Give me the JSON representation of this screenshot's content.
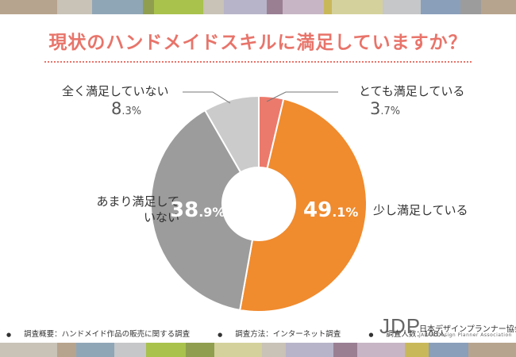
{
  "title": "現状のハンドメイドスキルに満足していますか？",
  "chart_data": {
    "type": "pie",
    "donut": true,
    "unit": "%",
    "slices": [
      {
        "label": "とても満足している",
        "value": 3.7,
        "color": "#ec7a6c"
      },
      {
        "label": "少し満足している",
        "value": 49.1,
        "color": "#f08b2e"
      },
      {
        "label": "あまり満足していない",
        "value": 38.9,
        "color": "#9c9c9c"
      },
      {
        "label": "全く満足していない",
        "value": 8.3,
        "color": "#cbcbcb"
      }
    ]
  },
  "labels": {
    "very_satisfied": {
      "text": "とても満足している",
      "int": "3",
      "dec": ".7%"
    },
    "somewhat_satisfied": {
      "text": "少し満足している",
      "int": "49",
      "dec": ".1%"
    },
    "not_very_line1": "あまり満足して",
    "not_very_line2": "いない",
    "not_very": {
      "int": "38",
      "dec": ".9%"
    },
    "not_at_all": {
      "text": "全く満足していない",
      "int": "8",
      "dec": ".3%"
    }
  },
  "footer": {
    "survey_overview": "調査概要：ハンドメイド作品の販売に関する調査",
    "survey_method": "調査方法：インターネット調査",
    "respondents": "調査人数：108人"
  },
  "logo": {
    "mark": "JDP",
    "name": "日本デザインプランナー協会",
    "name_en": "JAPAN Design Planner Association"
  },
  "colors": {
    "title": "#e8746a",
    "stripe": [
      "#b7a48e",
      "#c9c2b6",
      "#8fa6b7",
      "#8f9f4f",
      "#a8c24c",
      "#c4b9a6",
      "#b7b4c9",
      "#9a7f93",
      "#c7b5c6",
      "#c9b85a",
      "#d4d19c",
      "#c5c7c9",
      "#8a9fb9",
      "#b7a48e"
    ]
  }
}
